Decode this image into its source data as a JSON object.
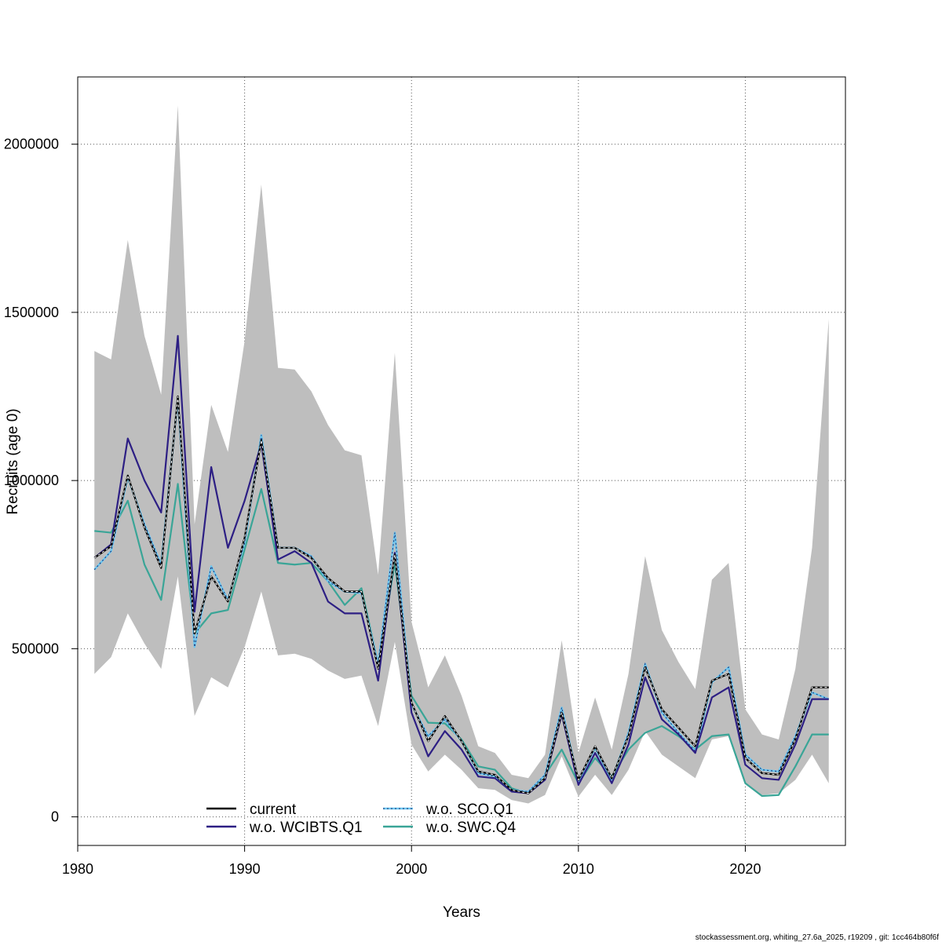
{
  "chart_data": {
    "type": "line",
    "xlabel": "Years",
    "ylabel": "Recruits (age 0)",
    "xlim": [
      1980,
      2026
    ],
    "ylim": [
      -85000,
      2200000
    ],
    "x_ticks": [
      1980,
      1990,
      2000,
      2010,
      2020
    ],
    "y_ticks": [
      0,
      500000,
      1000000,
      1500000,
      2000000
    ],
    "grid": true,
    "legend_position": "bottom-center",
    "x": [
      1981,
      1982,
      1983,
      1984,
      1985,
      1986,
      1987,
      1988,
      1989,
      1990,
      1991,
      1992,
      1993,
      1994,
      1995,
      1996,
      1997,
      1998,
      1999,
      2000,
      2001,
      2002,
      2003,
      2004,
      2005,
      2006,
      2007,
      2008,
      2009,
      2010,
      2011,
      2012,
      2013,
      2014,
      2015,
      2016,
      2017,
      2018,
      2019,
      2020,
      2021,
      2022,
      2023,
      2024,
      2025
    ],
    "band": {
      "color": "#bebebe",
      "upper": [
        1385000,
        1360000,
        1715000,
        1430000,
        1255000,
        2115000,
        870000,
        1225000,
        1085000,
        1415000,
        1880000,
        1335000,
        1330000,
        1265000,
        1165000,
        1090000,
        1075000,
        720000,
        1380000,
        580000,
        385000,
        480000,
        360000,
        210000,
        190000,
        125000,
        115000,
        185000,
        525000,
        190000,
        355000,
        200000,
        425000,
        775000,
        555000,
        460000,
        380000,
        705000,
        755000,
        320000,
        245000,
        230000,
        440000,
        800000,
        1480000
      ],
      "lower": [
        425000,
        475000,
        605000,
        515000,
        440000,
        715000,
        300000,
        415000,
        385000,
        505000,
        670000,
        480000,
        485000,
        470000,
        435000,
        410000,
        420000,
        270000,
        520000,
        215000,
        135000,
        185000,
        140000,
        85000,
        80000,
        50000,
        40000,
        65000,
        180000,
        60000,
        125000,
        65000,
        140000,
        255000,
        185000,
        150000,
        115000,
        230000,
        240000,
        100000,
        65000,
        70000,
        110000,
        185000,
        100000
      ]
    },
    "series": [
      {
        "name": "current",
        "color": "#000000",
        "style": "solid",
        "values": [
          770000,
          805000,
          1015000,
          860000,
          740000,
          1250000,
          545000,
          715000,
          640000,
          830000,
          1120000,
          800000,
          800000,
          770000,
          710000,
          670000,
          670000,
          440000,
          780000,
          340000,
          225000,
          300000,
          225000,
          135000,
          125000,
          80000,
          70000,
          115000,
          310000,
          110000,
          210000,
          115000,
          240000,
          445000,
          320000,
          265000,
          210000,
          405000,
          425000,
          175000,
          130000,
          125000,
          230000,
          385000,
          385000
        ]
      },
      {
        "name": "w.o. WCIBTS.Q1",
        "color": "#2d1f84",
        "style": "solid",
        "values": [
          770000,
          810000,
          1125000,
          1000000,
          905000,
          1430000,
          610000,
          1040000,
          800000,
          940000,
          1110000,
          765000,
          790000,
          755000,
          640000,
          605000,
          605000,
          405000,
          785000,
          310000,
          180000,
          255000,
          200000,
          120000,
          115000,
          75000,
          70000,
          110000,
          305000,
          95000,
          190000,
          100000,
          215000,
          415000,
          290000,
          245000,
          190000,
          355000,
          385000,
          155000,
          115000,
          110000,
          215000,
          350000,
          350000
        ]
      },
      {
        "name": "w.o. SCO.Q1",
        "color": "#6cc6f0",
        "style": "dotted",
        "values": [
          735000,
          790000,
          1010000,
          870000,
          750000,
          1245000,
          505000,
          745000,
          645000,
          815000,
          1135000,
          800000,
          800000,
          775000,
          700000,
          670000,
          665000,
          455000,
          845000,
          335000,
          240000,
          290000,
          225000,
          130000,
          120000,
          80000,
          75000,
          125000,
          325000,
          105000,
          205000,
          110000,
          250000,
          455000,
          310000,
          250000,
          195000,
          400000,
          445000,
          185000,
          140000,
          135000,
          240000,
          370000,
          350000
        ]
      },
      {
        "name": "w.o. SWC.Q4",
        "color": "#3aa597",
        "style": "solid",
        "values": [
          850000,
          845000,
          940000,
          750000,
          645000,
          990000,
          545000,
          605000,
          615000,
          795000,
          975000,
          755000,
          750000,
          755000,
          700000,
          630000,
          680000,
          455000,
          755000,
          360000,
          280000,
          278000,
          230000,
          150000,
          140000,
          85000,
          70000,
          125000,
          200000,
          100000,
          175000,
          120000,
          200000,
          250000,
          270000,
          240000,
          200000,
          240000,
          245000,
          100000,
          62000,
          65000,
          150000,
          245000,
          245000
        ]
      }
    ]
  },
  "footer": "stockassessment.org, whiting_27.6a_2025, r19209 , git: 1cc464b80f6f"
}
